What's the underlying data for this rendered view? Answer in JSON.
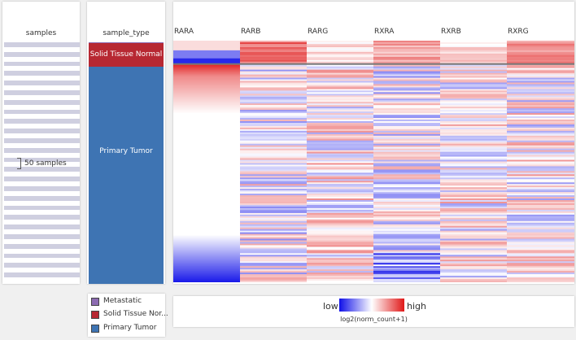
{
  "samples_column": {
    "title": "samples",
    "count_label": "50 samples"
  },
  "sample_type_column": {
    "title": "sample_type",
    "segments": [
      {
        "label": "",
        "color": "#8c6bb1",
        "fraction": 0.003
      },
      {
        "label": "Solid Tissue Normal",
        "color": "#b72832",
        "fraction": 0.099
      },
      {
        "label": "Primary Tumor",
        "color": "#3e74b3",
        "fraction": 0.898
      }
    ]
  },
  "heatmap": {
    "genes": [
      "RARA",
      "RARB",
      "RARG",
      "RXRA",
      "RXRB",
      "RXRG"
    ]
  },
  "legend": {
    "items": [
      {
        "label": "Metastatic",
        "color": "#8c6bb1"
      },
      {
        "label": "Solid Tissue Nor...",
        "color": "#b72832"
      },
      {
        "label": "Primary Tumor",
        "color": "#3e74b3"
      }
    ]
  },
  "colorbar": {
    "low_label": "low",
    "high_label": "high",
    "title": "log2(norm_count+1)",
    "low_color": "#1010e8",
    "mid_color": "#ffffff",
    "high_color": "#e01818"
  }
}
